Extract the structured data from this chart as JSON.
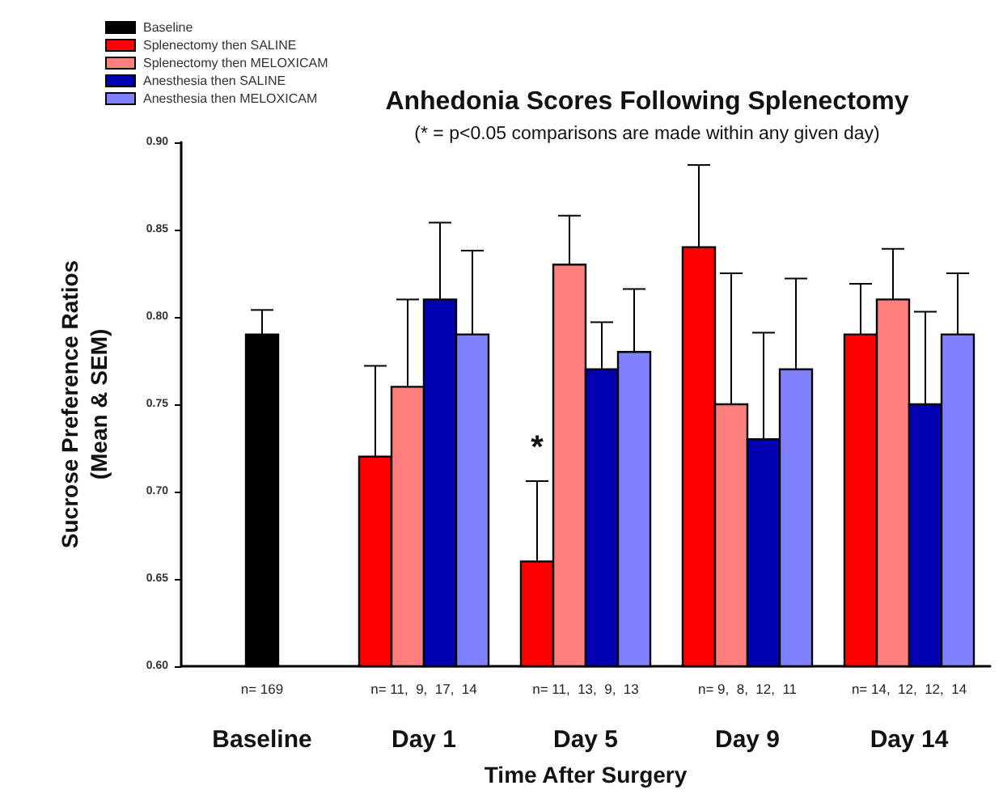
{
  "chart_data": {
    "type": "bar",
    "title": "Anhedonia Scores Following Splenectomy",
    "subtitle": "(* = p<0.05 comparisons are made within any given day)",
    "xlabel": "Time After Surgery",
    "ylabel": "Sucrose Preference Ratios\n(Mean & SEM)",
    "categories": [
      "Baseline",
      "Day 1",
      "Day 5",
      "Day 9",
      "Day 14"
    ],
    "series": [
      {
        "name": "Baseline",
        "color": "#000000",
        "values": [
          0.79,
          null,
          null,
          null,
          null
        ],
        "errors": [
          [
            0.79,
            0.804
          ],
          null,
          null,
          null,
          null
        ]
      },
      {
        "name": "Splenectomy then SALINE",
        "color": "#ff0000",
        "values": [
          null,
          0.72,
          0.66,
          0.84,
          0.79
        ],
        "errors": [
          null,
          [
            0.72,
            0.772
          ],
          [
            0.66,
            0.706
          ],
          [
            0.84,
            0.887
          ],
          [
            0.79,
            0.819
          ]
        ]
      },
      {
        "name": "Splenectomy then MELOXICAM",
        "color": "#ff7f7f",
        "values": [
          null,
          0.76,
          0.83,
          0.75,
          0.81
        ],
        "errors": [
          null,
          [
            0.76,
            0.81
          ],
          [
            0.83,
            0.858
          ],
          [
            0.75,
            0.825
          ],
          [
            0.81,
            0.839
          ]
        ]
      },
      {
        "name": "Anesthesia then SALINE",
        "color": "#0000b0",
        "values": [
          null,
          0.81,
          0.77,
          0.73,
          0.75
        ],
        "errors": [
          null,
          [
            0.81,
            0.854
          ],
          [
            0.77,
            0.797
          ],
          [
            0.73,
            0.791
          ],
          [
            0.75,
            0.803
          ]
        ]
      },
      {
        "name": "Anesthesia then MELOXICAM",
        "color": "#8080ff",
        "values": [
          null,
          0.79,
          0.78,
          0.77,
          0.79
        ],
        "errors": [
          null,
          [
            0.79,
            0.838
          ],
          [
            0.78,
            0.816
          ],
          [
            0.77,
            0.822
          ],
          [
            0.79,
            0.825
          ]
        ]
      }
    ],
    "ylim": [
      0.6,
      0.9
    ],
    "yticks": [
      {
        "value": 0.6,
        "label": "0.60"
      },
      {
        "value": 0.65,
        "label": "0.65"
      },
      {
        "value": 0.7,
        "label": "0.70"
      },
      {
        "value": 0.75,
        "label": "0.75"
      },
      {
        "value": 0.8,
        "label": "0.80"
      },
      {
        "value": 0.85,
        "label": "0.85"
      },
      {
        "value": 0.9,
        "label": "0.90"
      }
    ],
    "grid": false,
    "legend": "top left",
    "annotations": [
      {
        "text": "*",
        "x": "Day 5",
        "y": 0.725
      },
      "n= 169",
      "n= 11,  9,  17,  14",
      "n= 11,  13,  9,  13",
      "n= 9,  8,  12,  11",
      "n= 14,  12,  12,  14"
    ]
  }
}
